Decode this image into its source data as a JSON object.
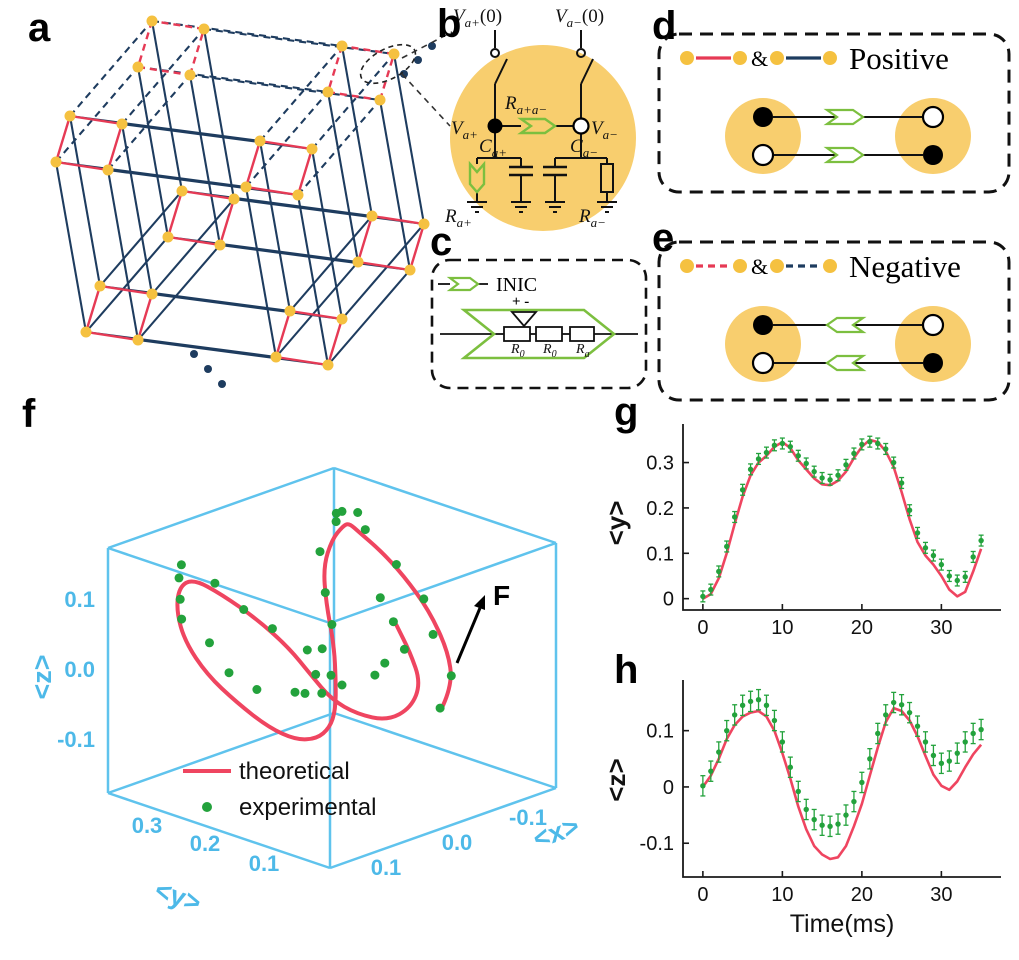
{
  "colors": {
    "node_yellow": "#f5c140",
    "circle_yellow": "#f8ce6e",
    "red": "#e63a55",
    "navy": "#1e3c5f",
    "green": "#7cbf3f",
    "skyblue": "#5fc3ed",
    "curve_red": "#ef4560",
    "dot_green": "#23a23c",
    "black": "#111111"
  },
  "panel_labels": {
    "a": "a",
    "b": "b",
    "c": "c",
    "d": "d",
    "e": "e",
    "f": "f",
    "g": "g",
    "h": "h"
  },
  "panel_b": {
    "init_left": {
      "base": "V",
      "sub": "a+",
      "rest": "(0)"
    },
    "init_right": {
      "base": "V",
      "sub": "a−",
      "rest": "(0)"
    },
    "node_left": {
      "base": "V",
      "sub": "a+"
    },
    "node_right": {
      "base": "V",
      "sub": "a−"
    },
    "coupling": {
      "base": "R",
      "sub": "a+a−"
    },
    "cap_left": {
      "base": "C",
      "sub": "a+"
    },
    "cap_right": {
      "base": "C",
      "sub": "a−"
    },
    "res_left": {
      "base": "R",
      "sub": "a+"
    },
    "res_right": {
      "base": "R",
      "sub": "a−"
    }
  },
  "panel_c": {
    "legend": "INIC",
    "plus_minus": "+ -",
    "r1": {
      "base": "R",
      "sub": "0"
    },
    "r2": {
      "base": "R",
      "sub": "0"
    },
    "r3": {
      "base": "R",
      "sub": "a"
    }
  },
  "panel_d": {
    "amp": "&",
    "title": "Positive"
  },
  "panel_e": {
    "amp": "&",
    "title": "Negative"
  },
  "panel_f": {
    "force": "F",
    "legend_theoretical": "theoretical",
    "legend_experimental": "experimental",
    "x_label": "<x>",
    "y_label": "<y>",
    "z_label": "<z>",
    "x_ticks": [
      "0.1",
      "0.0",
      "-0.1"
    ],
    "y_ticks": [
      "0.3",
      "0.2",
      "0.1"
    ],
    "z_ticks": [
      "0.1",
      "0.0",
      "-0.1"
    ]
  },
  "chart_data": [
    {
      "id": "f",
      "type": "line3d",
      "x_axis": {
        "label": "<x>",
        "ticks": [
          0.1,
          0,
          -0.1
        ],
        "range": [
          -0.16,
          0.16
        ]
      },
      "y_axis": {
        "label": "<y>",
        "ticks": [
          0.3,
          0.2,
          0.1
        ],
        "range": [
          0,
          0.38
        ]
      },
      "z_axis": {
        "label": "<z>",
        "ticks": [
          0.1,
          0,
          -0.1
        ],
        "range": [
          -0.175,
          0.175
        ]
      },
      "trajectory_x": [
        0.0,
        -0.022,
        -0.044,
        -0.063,
        -0.081,
        -0.096,
        -0.107,
        -0.115,
        -0.119,
        -0.12,
        -0.116,
        -0.109,
        -0.098,
        -0.084,
        -0.067,
        -0.048,
        -0.028,
        -0.007,
        0.015,
        0.036,
        0.057,
        0.076,
        0.092,
        0.105,
        0.114,
        0.119,
        0.12,
        0.116,
        0.108,
        0.096,
        0.08,
        0.062,
        0.041,
        0.019,
        -0.003,
        -0.025
      ]
    },
    {
      "id": "g",
      "type": "line",
      "ylabel": "<y>",
      "xlabel": "",
      "x_ticks": [
        {
          "v": 0,
          "label": "0"
        },
        {
          "v": 10,
          "label": "10"
        },
        {
          "v": 20,
          "label": "20"
        },
        {
          "v": 30,
          "label": "30"
        }
      ],
      "y_ticks": [
        {
          "v": 0,
          "label": "0"
        },
        {
          "v": 0.1,
          "label": "0.1"
        },
        {
          "v": 0.2,
          "label": "0.2"
        },
        {
          "v": 0.3,
          "label": "0.3"
        }
      ],
      "xlim": [
        -2.5,
        37.5
      ],
      "ylim": [
        -0.025,
        0.385
      ],
      "err": 0.012,
      "t": [
        0,
        1,
        2,
        3,
        4,
        5,
        6,
        7,
        8,
        9,
        10,
        11,
        12,
        13,
        14,
        15,
        16,
        17,
        18,
        19,
        20,
        21,
        22,
        23,
        24,
        25,
        26,
        27,
        28,
        29,
        30,
        31,
        32,
        33,
        34,
        35
      ],
      "theoretical": [
        0.0,
        0.01,
        0.045,
        0.1,
        0.165,
        0.225,
        0.272,
        0.3,
        0.315,
        0.335,
        0.345,
        0.332,
        0.305,
        0.285,
        0.265,
        0.252,
        0.25,
        0.26,
        0.28,
        0.31,
        0.335,
        0.35,
        0.345,
        0.325,
        0.29,
        0.235,
        0.175,
        0.125,
        0.095,
        0.075,
        0.05,
        0.02,
        0.005,
        0.015,
        0.06,
        0.11
      ],
      "experimental": [
        0.005,
        0.02,
        0.06,
        0.115,
        0.18,
        0.24,
        0.285,
        0.308,
        0.322,
        0.338,
        0.342,
        0.335,
        0.315,
        0.298,
        0.28,
        0.266,
        0.262,
        0.272,
        0.295,
        0.32,
        0.34,
        0.346,
        0.342,
        0.33,
        0.3,
        0.255,
        0.195,
        0.145,
        0.112,
        0.095,
        0.075,
        0.05,
        0.04,
        0.048,
        0.092,
        0.128
      ]
    },
    {
      "id": "h",
      "type": "line",
      "ylabel": "<z>",
      "xlabel": "Time(ms)",
      "x_ticks": [
        {
          "v": 0,
          "label": "0"
        },
        {
          "v": 10,
          "label": "10"
        },
        {
          "v": 20,
          "label": "20"
        },
        {
          "v": 30,
          "label": "30"
        }
      ],
      "y_ticks": [
        {
          "v": -0.1,
          "label": "-0.1"
        },
        {
          "v": 0,
          "label": "0"
        },
        {
          "v": 0.1,
          "label": "0.1"
        }
      ],
      "xlim": [
        -2.5,
        37.5
      ],
      "ylim": [
        -0.16,
        0.19
      ],
      "err": 0.018,
      "t": [
        0,
        1,
        2,
        3,
        4,
        5,
        6,
        7,
        8,
        9,
        10,
        11,
        12,
        13,
        14,
        15,
        16,
        17,
        18,
        19,
        20,
        21,
        22,
        23,
        24,
        25,
        26,
        27,
        28,
        29,
        30,
        31,
        32,
        33,
        34,
        35
      ],
      "theoretical": [
        0.0,
        0.02,
        0.05,
        0.085,
        0.11,
        0.125,
        0.132,
        0.135,
        0.125,
        0.1,
        0.06,
        0.015,
        -0.035,
        -0.075,
        -0.105,
        -0.12,
        -0.128,
        -0.125,
        -0.105,
        -0.07,
        -0.03,
        0.02,
        0.07,
        0.115,
        0.14,
        0.135,
        0.118,
        0.09,
        0.055,
        0.022,
        0.002,
        -0.005,
        0.01,
        0.035,
        0.058,
        0.075
      ],
      "experimental": [
        0.002,
        0.028,
        0.062,
        0.1,
        0.128,
        0.145,
        0.152,
        0.155,
        0.145,
        0.118,
        0.08,
        0.035,
        -0.008,
        -0.04,
        -0.058,
        -0.068,
        -0.07,
        -0.066,
        -0.05,
        -0.026,
        0.008,
        0.05,
        0.095,
        0.128,
        0.15,
        0.146,
        0.132,
        0.108,
        0.08,
        0.056,
        0.042,
        0.046,
        0.06,
        0.08,
        0.095,
        0.102
      ]
    }
  ]
}
